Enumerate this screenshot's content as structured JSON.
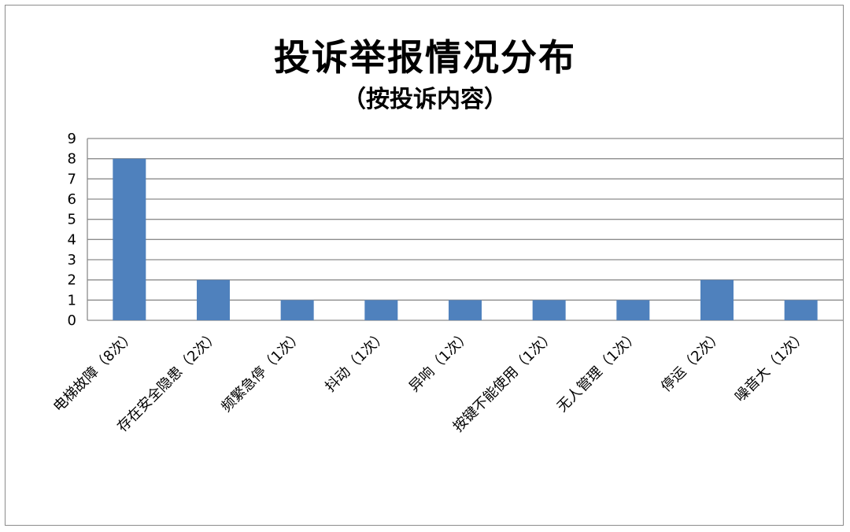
{
  "chart_data": {
    "type": "bar",
    "title": "投诉举报情况分布",
    "subtitle": "（按投诉内容）",
    "categories": [
      "电梯故障（8次）",
      "存在安全隐患（2次）",
      "频繁急停（1次）",
      "抖动（1次）",
      "异响（1次）",
      "按键不能使用（1次）",
      "无人管理（1次）",
      "停运（2次）",
      "噪音大（1次）"
    ],
    "values": [
      8,
      2,
      1,
      1,
      1,
      1,
      1,
      2,
      1
    ],
    "ylim": [
      0,
      9
    ],
    "yticks": [
      0,
      1,
      2,
      3,
      4,
      5,
      6,
      7,
      8,
      9
    ],
    "grid": true,
    "legend": "none",
    "bar_color": "#4f81bd",
    "grid_color": "#8c8c8c"
  }
}
